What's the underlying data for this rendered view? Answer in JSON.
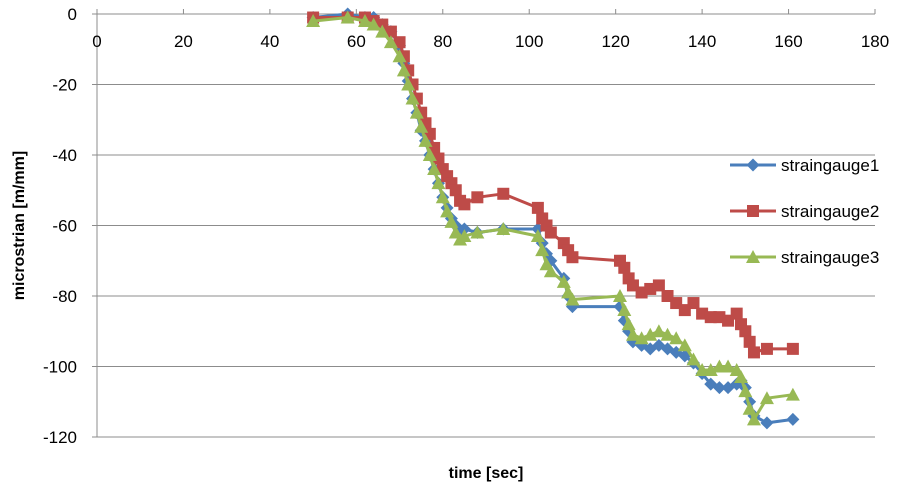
{
  "chart_data": {
    "type": "line",
    "title": "",
    "xlabel": "time [sec]",
    "ylabel": "microstrian  [m/mm]",
    "xlim": [
      0,
      180
    ],
    "ylim": [
      -120,
      0
    ],
    "x_ticks": [
      "0",
      "20",
      "40",
      "60",
      "80",
      "100",
      "120",
      "140",
      "160",
      "180"
    ],
    "y_ticks": [
      "0",
      "-20",
      "-40",
      "-60",
      "-80",
      "-100",
      "-120"
    ],
    "x_tick_values": [
      0,
      20,
      40,
      60,
      80,
      100,
      120,
      140,
      160,
      180
    ],
    "y_tick_values": [
      0,
      -20,
      -40,
      -60,
      -80,
      -100,
      -120
    ],
    "grid": "horizontal",
    "legend_position": "right",
    "series": [
      {
        "name": "straingauge1",
        "color": "#4a7ebb",
        "marker": "diamond",
        "x": [
          50,
          58,
          62,
          64,
          66,
          68,
          70,
          71,
          72,
          73,
          74,
          75,
          76,
          77,
          78,
          79,
          80,
          81,
          82,
          83,
          84,
          85,
          88,
          94,
          102,
          103,
          104,
          105,
          108,
          109,
          110,
          121,
          122,
          123,
          124,
          126,
          128,
          130,
          132,
          134,
          136,
          138,
          140,
          142,
          144,
          146,
          148,
          149,
          150,
          151,
          152,
          155,
          161
        ],
        "y": [
          -1,
          0,
          -1,
          -1,
          -3,
          -5,
          -9,
          -14,
          -19,
          -24,
          -28,
          -33,
          -36,
          -40,
          -44,
          -48,
          -52,
          -55,
          -58,
          -60,
          -62,
          -61,
          -62,
          -61,
          -61,
          -65,
          -68,
          -70,
          -75,
          -80,
          -83,
          -83,
          -87,
          -90,
          -93,
          -94,
          -95,
          -94,
          -95,
          -96,
          -97,
          -99,
          -102,
          -105,
          -106,
          -106,
          -105,
          -104,
          -106,
          -110,
          -114,
          -116,
          -115
        ]
      },
      {
        "name": "straingauge2",
        "color": "#be4b48",
        "marker": "square",
        "x": [
          50,
          58,
          62,
          64,
          66,
          68,
          70,
          71,
          72,
          73,
          74,
          75,
          76,
          77,
          78,
          79,
          80,
          81,
          82,
          83,
          84,
          85,
          88,
          94,
          102,
          103,
          104,
          105,
          108,
          109,
          110,
          121,
          122,
          123,
          124,
          126,
          128,
          130,
          132,
          134,
          136,
          138,
          140,
          142,
          144,
          146,
          148,
          149,
          150,
          151,
          152,
          155,
          161
        ],
        "y": [
          -1,
          -1,
          -1,
          -2,
          -3,
          -5,
          -8,
          -12,
          -16,
          -20,
          -24,
          -28,
          -31,
          -34,
          -38,
          -41,
          -44,
          -46,
          -48,
          -50,
          -53,
          -54,
          -52,
          -51,
          -55,
          -58,
          -60,
          -62,
          -65,
          -67,
          -69,
          -70,
          -72,
          -75,
          -77,
          -79,
          -78,
          -77,
          -80,
          -82,
          -84,
          -82,
          -85,
          -86,
          -86,
          -87,
          -85,
          -88,
          -90,
          -93,
          -96,
          -95,
          -95
        ]
      },
      {
        "name": "straingauge3",
        "color": "#98b954",
        "marker": "triangle",
        "x": [
          50,
          58,
          62,
          64,
          66,
          68,
          70,
          71,
          72,
          73,
          74,
          75,
          76,
          77,
          78,
          79,
          80,
          81,
          82,
          83,
          84,
          85,
          88,
          94,
          102,
          103,
          104,
          105,
          108,
          109,
          110,
          121,
          122,
          123,
          124,
          126,
          128,
          130,
          132,
          134,
          136,
          138,
          140,
          142,
          144,
          146,
          148,
          149,
          150,
          151,
          152,
          155,
          161
        ],
        "y": [
          -2,
          -1,
          -2,
          -3,
          -5,
          -8,
          -12,
          -16,
          -20,
          -24,
          -28,
          -32,
          -36,
          -40,
          -44,
          -48,
          -52,
          -56,
          -59,
          -62,
          -64,
          -63,
          -62,
          -61,
          -63,
          -67,
          -71,
          -73,
          -76,
          -79,
          -81,
          -80,
          -84,
          -88,
          -91,
          -92,
          -91,
          -90,
          -91,
          -92,
          -94,
          -98,
          -101,
          -101,
          -100,
          -100,
          -101,
          -103,
          -107,
          -112,
          -115,
          -109,
          -108
        ]
      }
    ]
  }
}
